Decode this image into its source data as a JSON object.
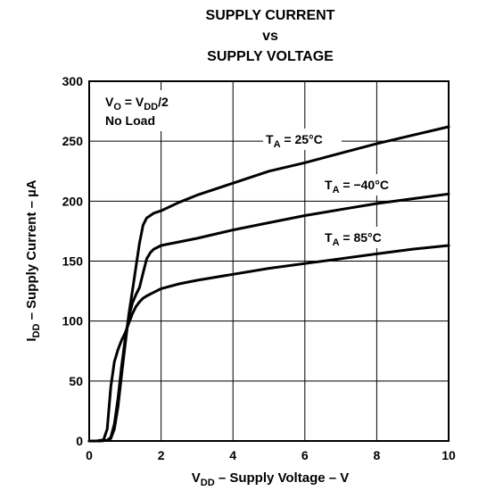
{
  "chart_data": {
    "type": "line",
    "title_lines": [
      "SUPPLY CURRENT",
      "vs",
      "SUPPLY VOLTAGE"
    ],
    "xlabel": {
      "main": "V",
      "sub": "DD",
      "rest": " – Supply Voltage – V"
    },
    "ylabel": {
      "main": "I",
      "sub": "DD",
      "rest": " – Supply Current – µA"
    },
    "xlim": [
      0,
      10
    ],
    "ylim": [
      0,
      300
    ],
    "xticks": [
      0,
      2,
      4,
      6,
      8,
      10
    ],
    "yticks": [
      0,
      50,
      100,
      150,
      200,
      250,
      300
    ],
    "grid": true,
    "conditions": {
      "line1": {
        "a": "V",
        "a_sub": "O",
        "b": " = V",
        "b_sub": "DD",
        "c": "/2"
      },
      "line2": "No Load"
    },
    "series": [
      {
        "name": "TA = 25°C",
        "label": {
          "t": "T",
          "sub": "A",
          "rest": " = 25°C"
        },
        "x": [
          0,
          0.3,
          0.5,
          0.6,
          0.7,
          0.8,
          0.9,
          1.0,
          1.1,
          1.2,
          1.3,
          1.4,
          1.5,
          1.6,
          1.7,
          1.8,
          2.0,
          2.5,
          3,
          4,
          5,
          6,
          7,
          8,
          9,
          10
        ],
        "y": [
          0,
          0,
          0.5,
          2,
          10,
          28,
          55,
          80,
          105,
          125,
          145,
          165,
          180,
          186,
          188,
          190,
          192,
          199,
          205,
          215,
          225,
          232,
          240,
          248,
          255,
          262
        ]
      },
      {
        "name": "TA = −40°C",
        "label": {
          "t": "T",
          "sub": "A",
          "rest": " = −40°C"
        },
        "x": [
          0,
          0.3,
          0.5,
          0.6,
          0.7,
          0.8,
          0.9,
          1.0,
          1.1,
          1.2,
          1.3,
          1.4,
          1.5,
          1.6,
          1.7,
          1.8,
          2.0,
          2.5,
          3,
          4,
          5,
          6,
          7,
          8,
          9,
          10
        ],
        "y": [
          0,
          0,
          0.5,
          3,
          14,
          35,
          62,
          85,
          103,
          115,
          122,
          128,
          140,
          152,
          157,
          160,
          163,
          166,
          169,
          176,
          182,
          188,
          193,
          198,
          202,
          206
        ]
      },
      {
        "name": "TA = 85°C",
        "label": {
          "t": "T",
          "sub": "A",
          "rest": " = 85°C"
        },
        "x": [
          0,
          0.2,
          0.4,
          0.5,
          0.6,
          0.7,
          0.8,
          0.9,
          1.0,
          1.1,
          1.2,
          1.3,
          1.4,
          1.5,
          1.6,
          1.8,
          2.0,
          2.5,
          3,
          4,
          5,
          6,
          7,
          8,
          9,
          10
        ],
        "y": [
          0,
          0,
          1,
          10,
          45,
          66,
          76,
          84,
          90,
          98,
          106,
          112,
          116,
          119,
          121,
          124,
          127,
          131,
          134,
          139,
          144,
          148,
          152,
          156,
          160,
          163
        ]
      }
    ]
  }
}
